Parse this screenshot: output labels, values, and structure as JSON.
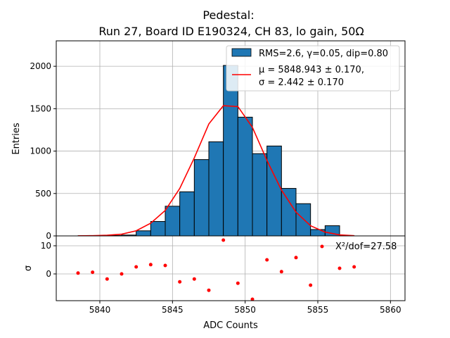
{
  "chart_data": {
    "type": "bar",
    "title_line1": "Pedestal:",
    "title_line2": "Run 27, Board ID E190324, CH 83, lo gain, 50Ω",
    "xlabel": "ADC Counts",
    "ylabel_top": "Entries",
    "ylabel_bottom": "σ",
    "xlim": [
      5837.0,
      5861.0
    ],
    "ylim_top": [
      0,
      2300
    ],
    "ylim_bottom": [
      -9.5,
      13.5
    ],
    "grid": true,
    "legend_placement": "upper right",
    "x_ticks": [
      {
        "value": 5840,
        "label": "5840"
      },
      {
        "value": 5845,
        "label": "5845"
      },
      {
        "value": 5850,
        "label": "5850"
      },
      {
        "value": 5855,
        "label": "5855"
      },
      {
        "value": 5860,
        "label": "5860"
      }
    ],
    "y_ticks_top": [
      {
        "value": 0,
        "label": "0"
      },
      {
        "value": 500,
        "label": "500"
      },
      {
        "value": 1000,
        "label": "1000"
      },
      {
        "value": 1500,
        "label": "1500"
      },
      {
        "value": 2000,
        "label": "2000"
      }
    ],
    "y_ticks_bottom": [
      {
        "value": 0,
        "label": "0"
      },
      {
        "value": 10,
        "label": "10"
      }
    ],
    "histogram": {
      "name": "RMS=2.6, γ=0.05, dip=0.80",
      "color": "#1f77b4",
      "edge_color": "#000000",
      "bin_edges": [
        5838.5,
        5839.5,
        5840.5,
        5841.5,
        5842.5,
        5843.5,
        5844.5,
        5845.5,
        5846.5,
        5847.5,
        5848.5,
        5849.5,
        5850.5,
        5851.5,
        5852.5,
        5853.5,
        5854.5,
        5855.5,
        5856.5,
        5857.5
      ],
      "values": [
        2,
        3,
        5,
        10,
        60,
        170,
        350,
        520,
        900,
        1110,
        2010,
        1400,
        970,
        1060,
        560,
        380,
        75,
        120,
        2
      ]
    },
    "fit": {
      "name_line1": "μ = 5848.943 ± 0.170,",
      "name_line2": "σ = 2.442 ± 0.170",
      "color": "#ff0000",
      "x": [
        5838.5,
        5839.5,
        5840.5,
        5841.5,
        5842.5,
        5843.5,
        5844.5,
        5845.5,
        5846.5,
        5847.5,
        5848.5,
        5849.5,
        5850.5,
        5851.5,
        5852.5,
        5853.5,
        5854.5,
        5855.5,
        5856.5,
        5857.5
      ],
      "y": [
        1,
        3,
        8,
        20,
        60,
        150,
        300,
        560,
        920,
        1320,
        1535,
        1525,
        1280,
        890,
        540,
        280,
        120,
        45,
        12,
        3
      ]
    },
    "residuals": {
      "name": "X²/dof=27.58",
      "color": "#ff0000",
      "x": [
        5838.5,
        5839.5,
        5840.5,
        5841.5,
        5842.5,
        5843.5,
        5844.5,
        5845.5,
        5846.5,
        5847.5,
        5848.5,
        5849.5,
        5850.5,
        5851.5,
        5852.5,
        5853.5,
        5854.5,
        5855.5,
        5856.5,
        5857.5
      ],
      "y": [
        0.3,
        0.6,
        -1.8,
        0.0,
        2.5,
        3.3,
        3.0,
        -2.8,
        -1.8,
        -5.8,
        12.0,
        -3.3,
        -9.0,
        5.0,
        0.8,
        5.8,
        -4.0,
        null,
        2.0,
        2.5
      ]
    }
  }
}
